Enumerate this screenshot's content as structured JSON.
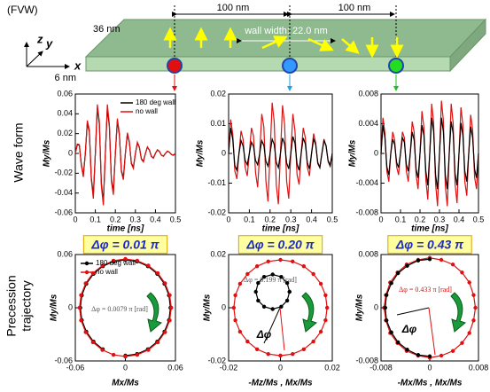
{
  "diagram": {
    "label": "(FVW)",
    "depth": "36 nm",
    "spacing_left": "100 nm",
    "spacing_right": "100 nm",
    "wall_width": "wall width: 22.0 nm",
    "thickness": "6 nm",
    "axis_z": "z",
    "axis_y": "y",
    "axis_x": "x"
  },
  "row_labels": {
    "wave": "Wave form",
    "trajectory": [
      "Precession",
      "trajectory"
    ]
  },
  "chart_data": [
    {
      "type": "line",
      "xlabel": "time [ns]",
      "ylabel": "My/Ms",
      "xlim": [
        0,
        0.5
      ],
      "ylim": [
        -0.06,
        0.06
      ],
      "xticks": [
        0,
        0.1,
        0.2,
        0.3,
        0.4,
        0.5
      ],
      "yticks": [
        -0.06,
        -0.04,
        -0.02,
        0,
        0.02,
        0.04,
        0.06
      ],
      "legend": "upper right",
      "x": [
        0,
        0.01,
        0.02,
        0.03,
        0.04,
        0.05,
        0.06,
        0.07,
        0.08,
        0.09,
        0.1,
        0.11,
        0.12,
        0.13,
        0.14,
        0.15,
        0.16,
        0.17,
        0.18,
        0.19,
        0.2,
        0.21,
        0.22,
        0.23,
        0.24,
        0.25,
        0.26,
        0.27,
        0.28,
        0.29,
        0.3,
        0.31,
        0.32,
        0.33,
        0.34,
        0.35,
        0.36,
        0.37,
        0.38,
        0.39,
        0.4,
        0.41,
        0.42,
        0.43,
        0.44,
        0.45,
        0.46,
        0.47,
        0.48,
        0.49,
        0.5
      ],
      "series": [
        {
          "name": "180 deg wall",
          "color": "#000000",
          "values": [
            0,
            0.0088,
            0.0083,
            -0.011,
            -0.0221,
            0,
            0.031,
            0.0219,
            -0.0247,
            -0.0424,
            0,
            0.0459,
            0.0297,
            -0.0302,
            -0.0486,
            0,
            0.0459,
            0.0274,
            -0.0258,
            -0.0389,
            0,
            0.0327,
            0.0187,
            -0.017,
            -0.0247,
            0,
            0.0194,
            0.011,
            -0.0099,
            -0.0141,
            0,
            0.0106,
            0.006,
            -0.0055,
            -0.008,
            0,
            0.0062,
            0.0033,
            -0.003,
            -0.0045,
            0,
            0.0035,
            0.002,
            -0.0017,
            -0.0027,
            0,
            0.0022,
            0.0011,
            -0.0011,
            -0.0018,
            0
          ]
        },
        {
          "name": "no wall",
          "color": "#e01010",
          "values": [
            0,
            0.0095,
            0.0089,
            -0.0118,
            -0.0238,
            0,
            0.0333,
            0.0236,
            -0.0266,
            -0.0456,
            0,
            0.0494,
            0.0319,
            -0.0325,
            -0.0523,
            0,
            0.0494,
            0.0295,
            -0.0277,
            -0.0418,
            0,
            0.0352,
            0.0201,
            -0.0183,
            -0.0266,
            0,
            0.0209,
            0.0118,
            -0.0106,
            -0.0152,
            0,
            0.0114,
            0.0065,
            -0.0059,
            -0.0086,
            0,
            0.0067,
            0.0035,
            -0.0032,
            -0.0048,
            0,
            0.0038,
            0.0021,
            -0.0018,
            -0.0029,
            0,
            0.0024,
            0.0012,
            -0.0012,
            -0.0019,
            0
          ]
        }
      ]
    },
    {
      "type": "line",
      "xlabel": "time [ns]",
      "ylabel": "My/Ms",
      "xlim": [
        0,
        0.5
      ],
      "ylim": [
        -0.02,
        0.02
      ],
      "xticks": [
        0,
        0.1,
        0.2,
        0.3,
        0.4,
        0.5
      ],
      "yticks": [
        -0.02,
        -0.01,
        0,
        0.01,
        0.02
      ],
      "x": [
        0,
        0.01,
        0.02,
        0.03,
        0.04,
        0.05,
        0.06,
        0.07,
        0.08,
        0.09,
        0.1,
        0.11,
        0.12,
        0.13,
        0.14,
        0.15,
        0.16,
        0.17,
        0.18,
        0.19,
        0.2,
        0.21,
        0.22,
        0.23,
        0.24,
        0.25,
        0.26,
        0.27,
        0.28,
        0.29,
        0.3,
        0.31,
        0.32,
        0.33,
        0.34,
        0.35,
        0.36,
        0.37,
        0.38,
        0.39,
        0.4,
        0.41,
        0.42,
        0.43,
        0.44,
        0.45,
        0.46,
        0.47,
        0.48,
        0.49,
        0.5
      ],
      "series": [
        {
          "color": "#e01010",
          "values": [
            0,
            0.0114,
            0.0065,
            -0.0059,
            -0.0086,
            0,
            0.0076,
            0.0047,
            -0.0047,
            -0.0076,
            0,
            0.0086,
            0.0059,
            -0.0065,
            -0.0114,
            0,
            0.0133,
            0.0089,
            -0.0094,
            -0.0162,
            0,
            0.0171,
            0.0106,
            -0.0106,
            -0.0171,
            0,
            0.0162,
            0.01,
            -0.0094,
            -0.0152,
            0,
            0.0133,
            0.0077,
            -0.0071,
            -0.0105,
            0,
            0.0086,
            0.0053,
            -0.0047,
            -0.0076,
            0,
            0.0067,
            0.0035,
            -0.0035,
            -0.0048,
            0,
            0.0048,
            0.0024,
            -0.0024,
            -0.0038,
            0
          ]
        },
        {
          "color": "#000000",
          "values": [
            0,
            0.0086,
            0.0047,
            -0.0041,
            -0.0057,
            0,
            0.0043,
            0.0024,
            -0.0024,
            -0.0038,
            0,
            0.0038,
            0.0024,
            -0.0024,
            -0.0038,
            0,
            0.0043,
            0.0027,
            -0.0027,
            -0.0043,
            0,
            0.0048,
            0.003,
            -0.003,
            -0.0048,
            0,
            0.0052,
            0.0032,
            -0.0032,
            -0.0052,
            0,
            0.0057,
            0.0035,
            -0.0035,
            -0.0057,
            0,
            0.0052,
            0.0032,
            -0.0032,
            -0.0052,
            0,
            0.0048,
            0.003,
            -0.003,
            -0.0048,
            0,
            0.0043,
            0.0027,
            -0.0027,
            -0.0043,
            0
          ]
        }
      ]
    },
    {
      "type": "line",
      "xlabel": "time [ns]",
      "ylabel": "My/Ms",
      "xlim": [
        0,
        0.5
      ],
      "ylim": [
        -0.008,
        0.008
      ],
      "xticks": [
        0,
        0.1,
        0.2,
        0.3,
        0.4,
        0.5
      ],
      "yticks": [
        -0.008,
        -0.004,
        0,
        0.004,
        0.008
      ],
      "x": [
        0,
        0.01,
        0.02,
        0.03,
        0.04,
        0.05,
        0.06,
        0.07,
        0.08,
        0.09,
        0.1,
        0.11,
        0.12,
        0.13,
        0.14,
        0.15,
        0.16,
        0.17,
        0.18,
        0.19,
        0.2,
        0.21,
        0.22,
        0.23,
        0.24,
        0.25,
        0.26,
        0.27,
        0.28,
        0.29,
        0.3,
        0.31,
        0.32,
        0.33,
        0.34,
        0.35,
        0.36,
        0.37,
        0.38,
        0.39,
        0.4,
        0.41,
        0.42,
        0.43,
        0.44,
        0.45,
        0.46,
        0.47,
        0.48,
        0.49,
        0.5
      ],
      "series": [
        {
          "color": "#e01010",
          "values": [
            0,
            0.0048,
            0.0027,
            -0.0024,
            -0.0038,
            0,
            0.0029,
            0.0018,
            -0.0018,
            -0.0029,
            0,
            0.0029,
            0.0021,
            -0.0024,
            -0.0038,
            0,
            0.0043,
            0.0029,
            -0.0029,
            -0.0048,
            0,
            0.0057,
            0.0035,
            -0.0035,
            -0.0062,
            0,
            0.0067,
            0.0041,
            -0.0041,
            -0.0071,
            0,
            0.0071,
            0.0044,
            -0.0044,
            -0.0071,
            0,
            0.0067,
            0.0041,
            -0.0041,
            -0.0067,
            0,
            0.0062,
            0.0038,
            -0.0038,
            -0.0057,
            0,
            0.0052,
            0.0032,
            -0.0032,
            -0.0048,
            0
          ]
        },
        {
          "color": "#000000",
          "values": [
            0,
            0.0038,
            0.0021,
            -0.0018,
            -0.0029,
            0,
            0.0019,
            0.0012,
            -0.0012,
            -0.0019,
            0,
            0.0021,
            0.0015,
            -0.0015,
            -0.0024,
            0,
            0.0029,
            0.0018,
            -0.0021,
            -0.0033,
            0,
            0.0038,
            0.0024,
            -0.0024,
            -0.0043,
            0,
            0.0048,
            0.0029,
            -0.0029,
            -0.0048,
            0,
            0.0048,
            0.0029,
            -0.0029,
            -0.0048,
            0,
            0.0043,
            0.0027,
            -0.0027,
            -0.0043,
            0,
            0.0041,
            0.0024,
            -0.0024,
            -0.0038,
            0,
            0.0036,
            0.0021,
            -0.0021,
            -0.0033,
            0
          ]
        }
      ]
    },
    {
      "type": "scatter",
      "title": "Δφ = 0.01 π",
      "xlabel": "Mx/Ms",
      "ylabel": "My/Ms",
      "xlim": [
        -0.06,
        0.06
      ],
      "ylim": [
        -0.06,
        0.06
      ],
      "xticks": [
        -0.06,
        0,
        0.06
      ],
      "yticks": [
        -0.06,
        0,
        0.06
      ],
      "legend": "upper left",
      "annotations": [
        "Δφ = 0.0079 π [rad]"
      ],
      "series": [
        {
          "name": "180 deg wall",
          "color": "#000000",
          "x": [
            0,
            0.014,
            0.027,
            0.0382,
            0.0468,
            0.0522,
            0.054,
            0.0522,
            0.0468,
            0.0382,
            0.027,
            0.014,
            0,
            -0.014,
            -0.027,
            -0.0382,
            -0.0468,
            -0.0522,
            -0.054,
            -0.0522,
            -0.0468,
            -0.0382,
            -0.027
          ],
          "values": [
            -0.054,
            -0.0522,
            -0.0468,
            -0.0382,
            -0.027,
            -0.014,
            0,
            0.014,
            0.027,
            0.0382,
            0.0468,
            0.0522,
            0.054,
            0.0522,
            0.0468,
            0.0382,
            0.027,
            0.014,
            0,
            -0.014,
            -0.027,
            -0.0382,
            -0.0468
          ]
        },
        {
          "name": "no wall",
          "color": "#e01010",
          "x": [
            0,
            0.0142,
            0.0275,
            0.0389,
            0.0476,
            0.0531,
            0.055,
            0.0531,
            0.0476,
            0.0389,
            0.0275,
            0.0142,
            0,
            -0.0142,
            -0.0275,
            -0.0389,
            -0.0476,
            -0.0531,
            -0.055,
            -0.0531,
            -0.0476,
            -0.0389,
            -0.0275,
            -0.0142,
            0
          ],
          "values": [
            -0.055,
            -0.0531,
            -0.0476,
            -0.0389,
            -0.0275,
            -0.0142,
            0,
            0.0142,
            0.0275,
            0.0389,
            0.0476,
            0.0531,
            0.055,
            0.0531,
            0.0476,
            0.0389,
            0.0275,
            0.0142,
            0,
            -0.0142,
            -0.0275,
            -0.0389,
            -0.0476,
            -0.0531,
            -0.055
          ]
        }
      ]
    },
    {
      "type": "scatter",
      "title": "Δφ = 0.20 π",
      "xlabel": "-Mz/Ms , Mx/Ms",
      "ylabel": "My/Ms",
      "xlim": [
        -0.02,
        0.02
      ],
      "ylim": [
        -0.02,
        0.02
      ],
      "xticks": [
        -0.02,
        0,
        0.02
      ],
      "yticks": [
        -0.02,
        0,
        0.02
      ],
      "annotations": [
        "Δφ = 0.199 π [rad]",
        "Δφ"
      ],
      "series": [
        {
          "color": "#e01010",
          "x": [
            0,
            0.0047,
            0.009,
            0.0127,
            0.0156,
            0.0174,
            0.018,
            0.0174,
            0.0156,
            0.0127,
            0.009,
            0.0047,
            0,
            -0.0047,
            -0.009,
            -0.0127,
            -0.0156,
            -0.0174,
            -0.018,
            -0.0174,
            -0.0156,
            -0.0127,
            -0.009,
            -0.0047,
            0
          ],
          "values": [
            -0.018,
            -0.0174,
            -0.0156,
            -0.0127,
            -0.009,
            -0.0047,
            0,
            0.0047,
            0.009,
            0.0127,
            0.0156,
            0.0174,
            0.018,
            0.0174,
            0.0156,
            0.0127,
            0.009,
            0.0047,
            0,
            -0.0047,
            -0.009,
            -0.0127,
            -0.0156,
            -0.0174,
            -0.018
          ]
        },
        {
          "color": "#000000",
          "x": [
            0.0035,
            0.0026,
            0.0003,
            -0.003,
            -0.0063,
            -0.0086,
            -0.0095,
            -0.0086,
            -0.0063,
            -0.003,
            0.0003,
            0.0026,
            0.0035
          ],
          "values": [
            0.006,
            0.0093,
            0.0116,
            0.0125,
            0.0116,
            0.0093,
            0.006,
            0.0027,
            0.0004,
            -0.0005,
            0.0004,
            0.0027,
            0.006
          ]
        }
      ]
    },
    {
      "type": "scatter",
      "title": "Δφ = 0.43 π",
      "xlabel": "-Mx/Ms , Mx/Ms",
      "ylabel": "My/Ms",
      "xlim": [
        -0.008,
        0.008
      ],
      "ylim": [
        -0.008,
        0.008
      ],
      "xticks": [
        -0.008,
        0,
        0.008
      ],
      "yticks": [
        -0.008,
        0,
        0.008
      ],
      "annotations": [
        "Δφ = 0.433 π [rad]",
        "Δφ"
      ],
      "series": [
        {
          "color": "#e01010",
          "x": [
            0,
            0.0019,
            0.0038,
            0.0053,
            0.0065,
            0.0072,
            0.0075,
            0.0072,
            0.0065,
            0.0053,
            0.0038,
            0.0019,
            0,
            -0.0019,
            -0.0038,
            -0.0053,
            -0.0065,
            -0.0072,
            -0.0075,
            -0.0072,
            -0.0065,
            -0.0053,
            -0.0038,
            -0.0019,
            0
          ],
          "values": [
            -0.0075,
            -0.0072,
            -0.0065,
            -0.0053,
            -0.0038,
            -0.0019,
            0,
            0.0019,
            0.0038,
            0.0053,
            0.0065,
            0.0072,
            0.0075,
            0.0072,
            0.0065,
            0.0053,
            0.0038,
            0.0019,
            0,
            -0.0019,
            -0.0038,
            -0.0053,
            -0.0065,
            -0.0072,
            -0.0075
          ]
        },
        {
          "color": "#000000",
          "x": [
            0,
            -0.0019,
            -0.0037,
            -0.0052,
            -0.0063,
            -0.0071,
            -0.0073,
            -0.0071,
            -0.0063,
            -0.0052,
            -0.0037,
            -0.0019,
            0
          ],
          "values": [
            0.0073,
            0.0071,
            0.0063,
            0.0052,
            0.0037,
            0.0019,
            0,
            -0.0019,
            -0.0037,
            -0.0052,
            -0.0063,
            -0.0071,
            -0.0073
          ]
        }
      ]
    }
  ]
}
